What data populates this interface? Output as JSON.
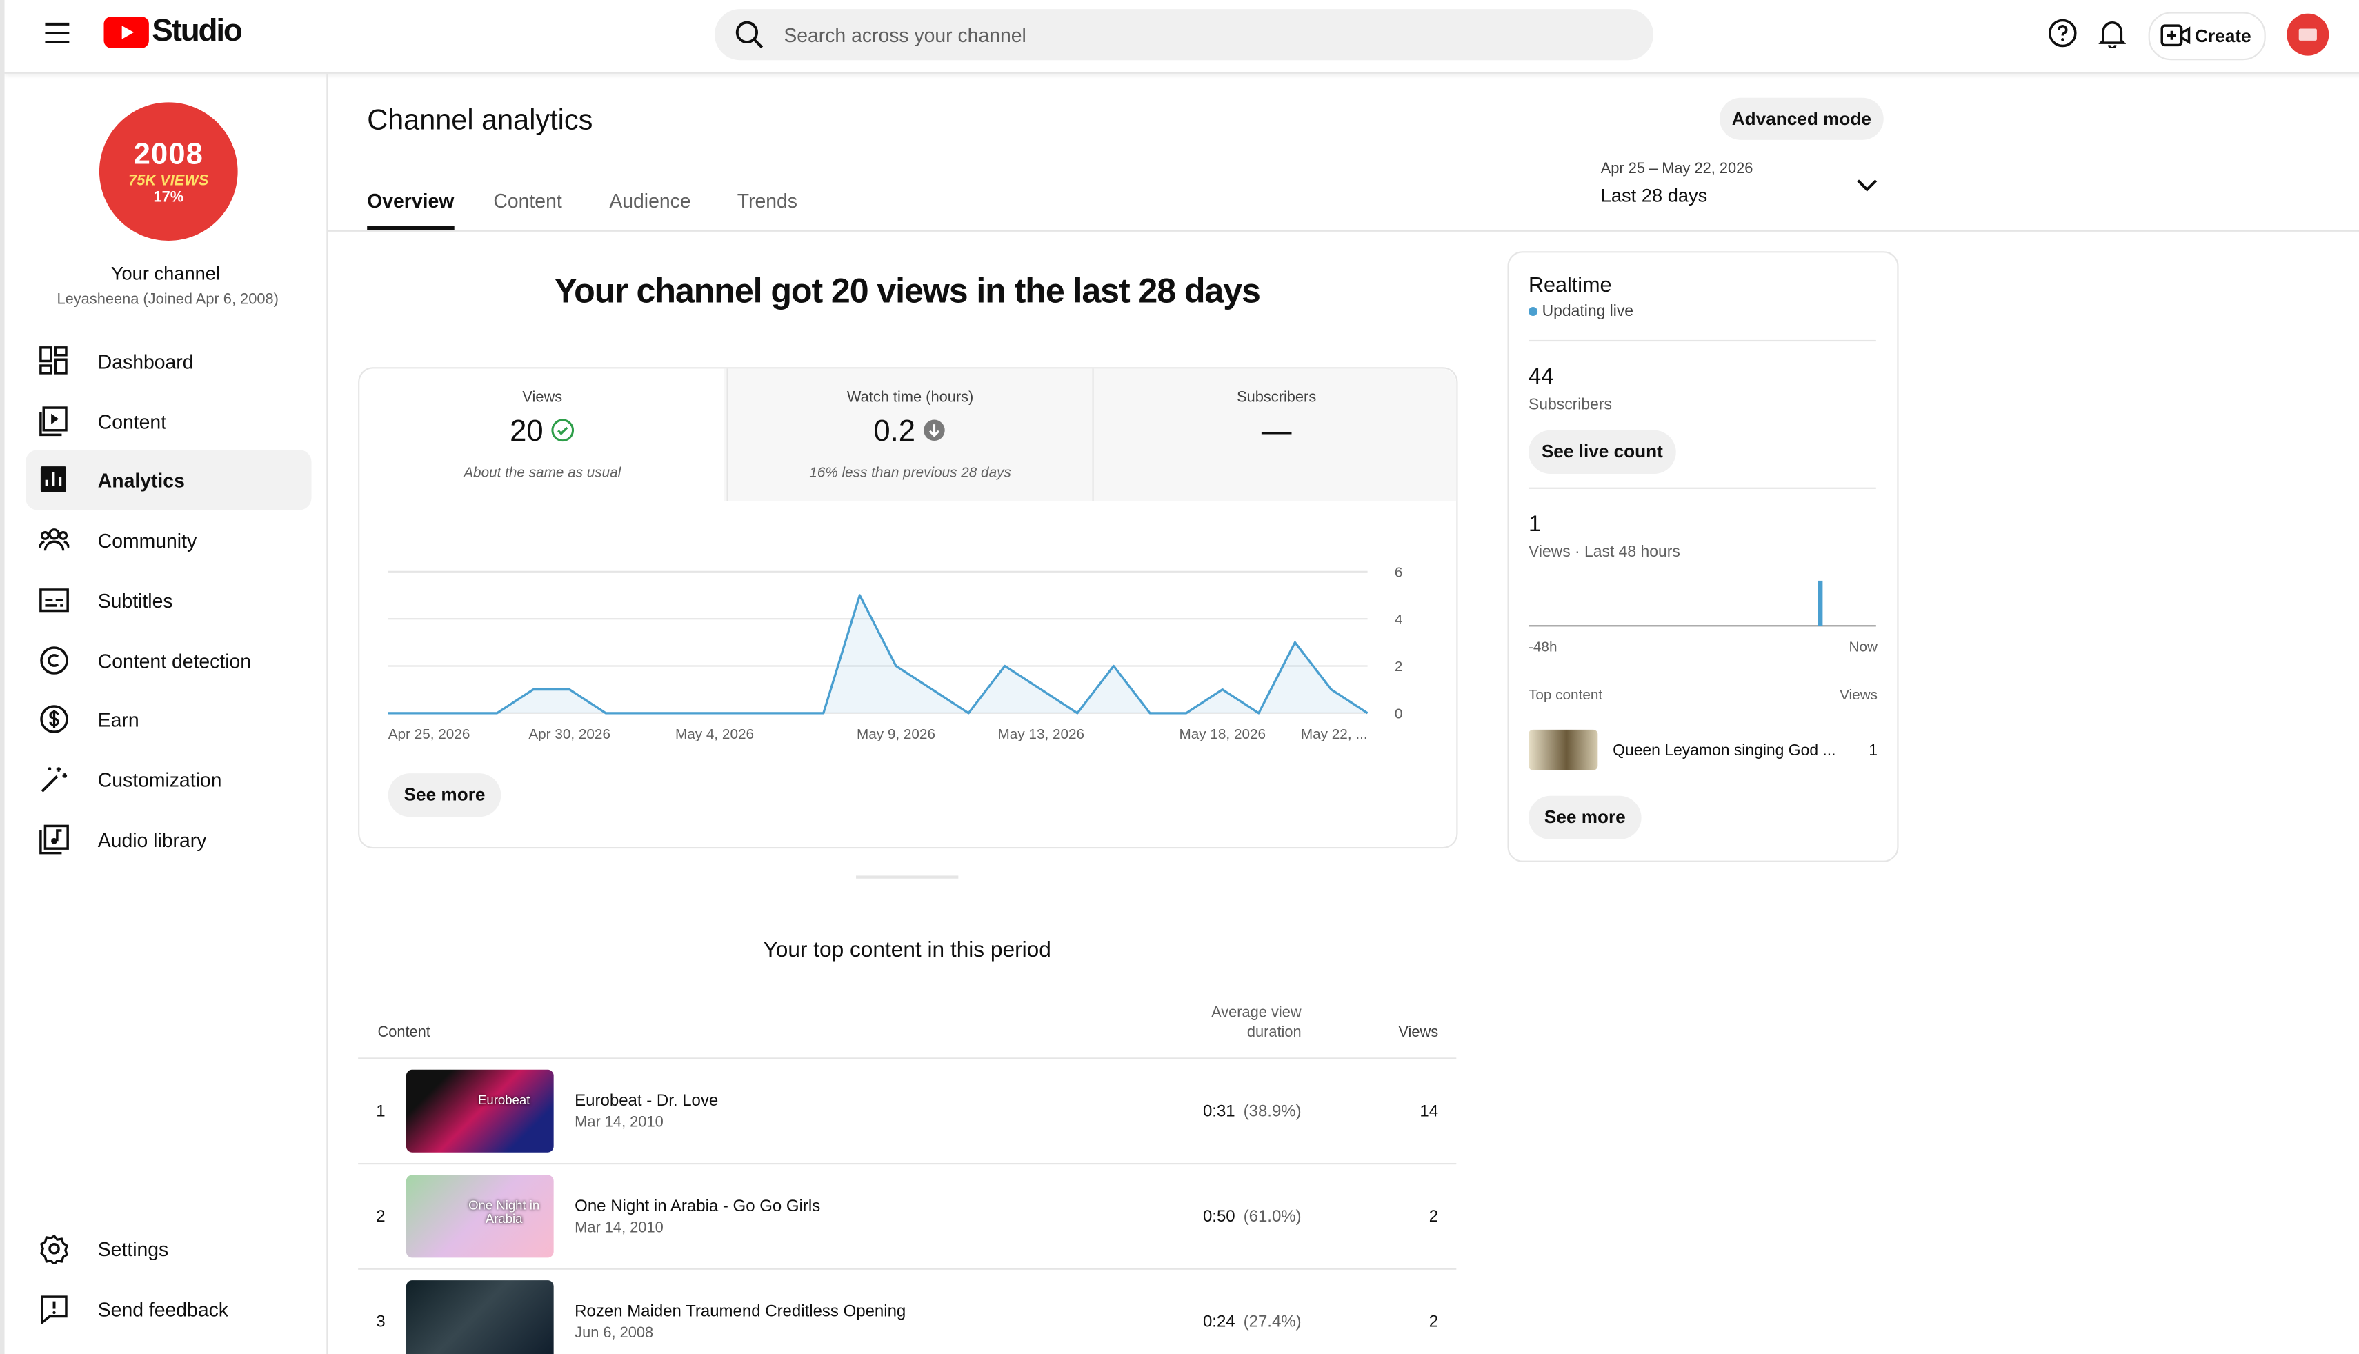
{
  "header": {
    "logo": "Studio",
    "search_placeholder": "Search across your channel",
    "create": "Create"
  },
  "sidebar": {
    "avatar": {
      "year": "2008",
      "views": "75K VIEWS",
      "percent": "17%"
    },
    "channel_title": "Your channel",
    "channel_sub": "Leyasheena (Joined Apr 6, 2008)",
    "nav": [
      "Dashboard",
      "Content",
      "Analytics",
      "Community",
      "Subtitles",
      "Content detection",
      "Earn",
      "Customization",
      "Audio library"
    ],
    "active": "Analytics",
    "bottom_nav": [
      "Settings",
      "Send feedback"
    ]
  },
  "page": {
    "title": "Channel analytics",
    "advanced_mode": "Advanced mode",
    "tabs": [
      "Overview",
      "Content",
      "Audience",
      "Trends"
    ],
    "active_tab": "Overview",
    "date_range": "Apr 25 – May 22, 2026",
    "period": "Last 28 days"
  },
  "summary": {
    "headline": "Your channel got 20 views in the last 28 days",
    "metrics": [
      {
        "label": "Views",
        "value": 20,
        "note": "About the same as usual"
      },
      {
        "label": "Watch time (hours)",
        "value": 0.2,
        "note": "16% less than previous 28 days"
      },
      {
        "label": "Subscribers",
        "value": "—"
      }
    ],
    "see_more": "See more"
  },
  "chart": {
    "type": "line",
    "color": "#4a9fd0",
    "categories": [
      "Apr 25, 2026",
      null,
      null,
      null,
      null,
      "Apr 30, 2026",
      null,
      null,
      null,
      "May 4, 2026",
      null,
      null,
      null,
      null,
      "May 9, 2026",
      null,
      null,
      null,
      "May 13, 2026",
      null,
      null,
      null,
      null,
      "May 18, 2026",
      null,
      null,
      null,
      "May 22, ..."
    ],
    "values": [
      0,
      0,
      0,
      0,
      1,
      1,
      0,
      0,
      0,
      0,
      0,
      0,
      0,
      5,
      2,
      1,
      0,
      2,
      1,
      0,
      2,
      0,
      0,
      1,
      0,
      3,
      1,
      0
    ],
    "ylim": [
      0,
      6
    ],
    "yticks": [
      0,
      2,
      4,
      6
    ],
    "grid": true
  },
  "realtime": {
    "title": "Realtime",
    "status": "Updating live",
    "subscribers": 44,
    "subscribers_label": "Subscribers",
    "see_live_count": "See live count",
    "views": 1,
    "views_label": "Views · Last 48 hours",
    "chart": {
      "type": "bar",
      "color": "#4a9fd0",
      "values": [
        0,
        0,
        0,
        0,
        0,
        0,
        0,
        0,
        0,
        0,
        0,
        0,
        0,
        0,
        0,
        0,
        0,
        0,
        0,
        0,
        0,
        0,
        0,
        0,
        0,
        0,
        0,
        0,
        0,
        0,
        0,
        0,
        0,
        0,
        0,
        0,
        0,
        0,
        0,
        0,
        1,
        0,
        0,
        0,
        0,
        0,
        0,
        0
      ],
      "ylim": [
        0,
        1
      ],
      "x_start": "-48h",
      "x_end": "Now"
    },
    "top_content_label": "Top content",
    "views_column": "Views",
    "top_content": [
      {
        "title": "Queen Leyamon singing God ...",
        "views": 1
      }
    ],
    "see_more": "See more"
  },
  "top_content": {
    "title": "Your top content in this period",
    "columns": [
      "Content",
      "Average view duration",
      "Views"
    ],
    "rows": [
      {
        "rank": 1,
        "title": "Eurobeat - Dr. Love",
        "date": "Mar 14, 2010",
        "thumb_text": "Eurobeat",
        "avg_duration": "0:31",
        "avg_percent": "(38.9%)",
        "views": 14
      },
      {
        "rank": 2,
        "title": "One Night in Arabia - Go Go Girls",
        "date": "Mar 14, 2010",
        "thumb_text": "One Night in Arabia",
        "avg_duration": "0:50",
        "avg_percent": "(61.0%)",
        "views": 2
      },
      {
        "rank": 3,
        "title": "Rozen Maiden Traumend Creditless Opening",
        "date": "Jun 6, 2008",
        "thumb_text": null,
        "avg_duration": "0:24",
        "avg_percent": "(27.4%)",
        "views": 2
      }
    ]
  }
}
